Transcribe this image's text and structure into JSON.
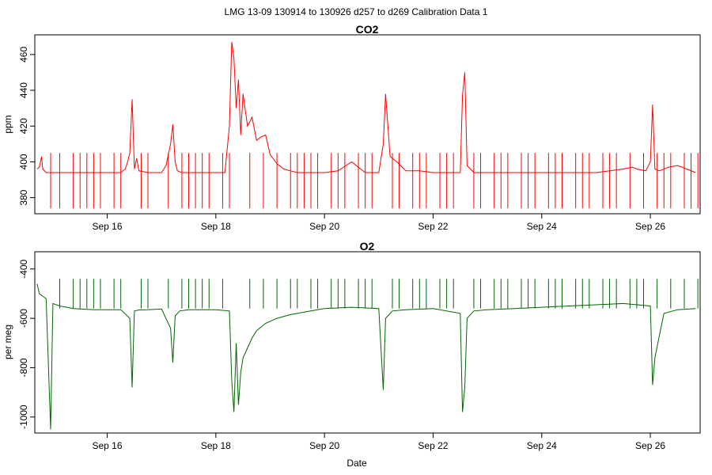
{
  "suptitle": "LMG   13-09    130914 to 130926    d257 to d269   Calibration Data 1",
  "chart_data": [
    {
      "type": "line",
      "title": "CO2",
      "xlabel": "",
      "ylabel": "ppm",
      "color": "#ff0000",
      "xlim": [
        "2013-09-14T16:00",
        "2013-09-26T22:00"
      ],
      "ylim": [
        371,
        471
      ],
      "x_ticks": [
        "2013-09-16",
        "2013-09-18",
        "2013-09-20",
        "2013-09-22",
        "2013-09-24",
        "2013-09-26"
      ],
      "x_tick_labels": [
        "Sep 16",
        "Sep 18",
        "Sep 20",
        "Sep 22",
        "Sep 24",
        "Sep 26"
      ],
      "y_ticks": [
        380,
        400,
        420,
        440,
        460
      ],
      "y_tick_labels": [
        "380",
        "400",
        "420",
        "440",
        "460"
      ],
      "series": [
        {
          "x": [
            "2013-09-14T17:00",
            "2013-09-14T18:00",
            "2013-09-14T19:00",
            "2013-09-14T19:30",
            "2013-09-14T21:00",
            "2013-09-15T00:00",
            "2013-09-15T06:00",
            "2013-09-15T12:00",
            "2013-09-15T18:00",
            "2013-09-16T00:00",
            "2013-09-16T06:00",
            "2013-09-16T08:00",
            "2013-09-16T09:00",
            "2013-09-16T10:00",
            "2013-09-16T11:00",
            "2013-09-16T12:00",
            "2013-09-16T13:00",
            "2013-09-16T14:00",
            "2013-09-16T18:00",
            "2013-09-17T00:00",
            "2013-09-17T02:00",
            "2013-09-17T04:00",
            "2013-09-17T05:00",
            "2013-09-17T06:00",
            "2013-09-17T07:00",
            "2013-09-17T09:00",
            "2013-09-17T12:00",
            "2013-09-17T18:00",
            "2013-09-18T00:00",
            "2013-09-18T04:00",
            "2013-09-18T06:00",
            "2013-09-18T07:00",
            "2013-09-18T08:00",
            "2013-09-18T09:00",
            "2013-09-18T10:00",
            "2013-09-18T11:00",
            "2013-09-18T12:00",
            "2013-09-18T14:00",
            "2013-09-18T16:00",
            "2013-09-18T18:00",
            "2013-09-18T20:00",
            "2013-09-18T22:00",
            "2013-09-19T00:00",
            "2013-09-19T03:00",
            "2013-09-19T06:00",
            "2013-09-19T09:00",
            "2013-09-19T12:00",
            "2013-09-19T15:00",
            "2013-09-19T18:00",
            "2013-09-20T00:00",
            "2013-09-20T06:00",
            "2013-09-20T12:00",
            "2013-09-20T18:00",
            "2013-09-21T00:00",
            "2013-09-21T02:00",
            "2013-09-21T03:00",
            "2013-09-21T05:00",
            "2013-09-21T08:00",
            "2013-09-21T12:00",
            "2013-09-21T18:00",
            "2013-09-22T00:00",
            "2013-09-22T06:00",
            "2013-09-22T12:00",
            "2013-09-22T13:00",
            "2013-09-22T14:00",
            "2013-09-22T15:00",
            "2013-09-22T18:00",
            "2013-09-23T00:00",
            "2013-09-23T06:00",
            "2013-09-23T12:00",
            "2013-09-23T18:00",
            "2013-09-24T00:00",
            "2013-09-24T06:00",
            "2013-09-24T12:00",
            "2013-09-24T18:00",
            "2013-09-25T00:00",
            "2013-09-25T06:00",
            "2013-09-25T12:00",
            "2013-09-25T16:00",
            "2013-09-25T18:00",
            "2013-09-25T22:00",
            "2013-09-26T00:00",
            "2013-09-26T01:00",
            "2013-09-26T02:00",
            "2013-09-26T04:00",
            "2013-09-26T08:00",
            "2013-09-26T12:00",
            "2013-09-26T16:00",
            "2013-09-26T20:00"
          ],
          "y": [
            396,
            397,
            403,
            396,
            394,
            394,
            394,
            394,
            394,
            394,
            394,
            396,
            400,
            405,
            435,
            396,
            402,
            395,
            394,
            394,
            398,
            410,
            421,
            400,
            395,
            394,
            394,
            394,
            394,
            394,
            420,
            467,
            458,
            430,
            446,
            415,
            438,
            420,
            425,
            412,
            414,
            415,
            404,
            399,
            396,
            395,
            394,
            394,
            394,
            394,
            395,
            400,
            394,
            394,
            410,
            438,
            403,
            400,
            395,
            395,
            394,
            394,
            394,
            437,
            450,
            398,
            394,
            394,
            394,
            394,
            394,
            394,
            394,
            394,
            394,
            394,
            395,
            396,
            397,
            396,
            395,
            400,
            432,
            396,
            395,
            397,
            398,
            396,
            394
          ]
        }
      ],
      "calibration_spikes": {
        "x": [
          "2013-09-14T23:00",
          "2013-09-15T03:00",
          "2013-09-15T09:00",
          "2013-09-15T12:00",
          "2013-09-15T15:00",
          "2013-09-15T18:00",
          "2013-09-15T21:00",
          "2013-09-16T03:00",
          "2013-09-16T06:00",
          "2013-09-16T15:00",
          "2013-09-16T18:00",
          "2013-09-17T03:00",
          "2013-09-17T09:00",
          "2013-09-17T12:00",
          "2013-09-17T15:00",
          "2013-09-17T18:00",
          "2013-09-17T21:00",
          "2013-09-18T03:00",
          "2013-09-18T06:00",
          "2013-09-18T15:00",
          "2013-09-18T21:00",
          "2013-09-19T03:00",
          "2013-09-19T09:00",
          "2013-09-19T12:00",
          "2013-09-19T15:00",
          "2013-09-19T18:00",
          "2013-09-19T21:00",
          "2013-09-20T03:00",
          "2013-09-20T06:00",
          "2013-09-20T09:00",
          "2013-09-20T15:00",
          "2013-09-20T18:00",
          "2013-09-20T21:00",
          "2013-09-21T06:00",
          "2013-09-21T09:00",
          "2013-09-21T15:00",
          "2013-09-21T18:00",
          "2013-09-21T21:00",
          "2013-09-22T03:00",
          "2013-09-22T06:00",
          "2013-09-22T09:00",
          "2013-09-22T18:00",
          "2013-09-22T21:00",
          "2013-09-23T03:00",
          "2013-09-23T06:00",
          "2013-09-23T09:00",
          "2013-09-23T15:00",
          "2013-09-23T18:00",
          "2013-09-23T21:00",
          "2013-09-24T03:00",
          "2013-09-24T06:00",
          "2013-09-24T09:00",
          "2013-09-24T15:00",
          "2013-09-24T18:00",
          "2013-09-24T21:00",
          "2013-09-25T03:00",
          "2013-09-25T06:00",
          "2013-09-25T09:00",
          "2013-09-25T15:00",
          "2013-09-25T21:00",
          "2013-09-26T03:00",
          "2013-09-26T06:00",
          "2013-09-26T09:00",
          "2013-09-26T15:00",
          "2013-09-26T18:00",
          "2013-09-26T21:00"
        ],
        "high": 405,
        "low": 374
      }
    },
    {
      "type": "line",
      "title": "O2",
      "xlabel": "Date",
      "ylabel": "per meg",
      "color": "#006400",
      "xlim": [
        "2013-09-14T16:00",
        "2013-09-26T22:00"
      ],
      "ylim": [
        -1065,
        -330
      ],
      "x_ticks": [
        "2013-09-16",
        "2013-09-18",
        "2013-09-20",
        "2013-09-22",
        "2013-09-24",
        "2013-09-26"
      ],
      "x_tick_labels": [
        "Sep 16",
        "Sep 18",
        "Sep 20",
        "Sep 22",
        "Sep 24",
        "Sep 26"
      ],
      "y_ticks": [
        -1000,
        -800,
        -600,
        -400
      ],
      "y_tick_labels": [
        "-1000",
        "-800",
        "-600",
        "-400"
      ],
      "series": [
        {
          "x": [
            "2013-09-14T17:00",
            "2013-09-14T18:00",
            "2013-09-14T21:00",
            "2013-09-14T23:00",
            "2013-09-15T00:00",
            "2013-09-15T03:00",
            "2013-09-15T06:00",
            "2013-09-15T09:00",
            "2013-09-15T12:00",
            "2013-09-15T18:00",
            "2013-09-16T00:00",
            "2013-09-16T06:00",
            "2013-09-16T10:00",
            "2013-09-16T11:00",
            "2013-09-16T12:00",
            "2013-09-16T14:00",
            "2013-09-16T18:00",
            "2013-09-17T00:00",
            "2013-09-17T04:00",
            "2013-09-17T05:00",
            "2013-09-17T06:00",
            "2013-09-17T08:00",
            "2013-09-17T12:00",
            "2013-09-17T18:00",
            "2013-09-18T00:00",
            "2013-09-18T06:00",
            "2013-09-18T07:00",
            "2013-09-18T08:00",
            "2013-09-18T09:00",
            "2013-09-18T10:00",
            "2013-09-18T11:00",
            "2013-09-18T12:00",
            "2013-09-18T14:00",
            "2013-09-18T16:00",
            "2013-09-18T18:00",
            "2013-09-18T22:00",
            "2013-09-19T03:00",
            "2013-09-19T09:00",
            "2013-09-19T15:00",
            "2013-09-20T00:00",
            "2013-09-20T12:00",
            "2013-09-21T00:00",
            "2013-09-21T02:00",
            "2013-09-21T03:00",
            "2013-09-21T06:00",
            "2013-09-21T12:00",
            "2013-09-22T00:00",
            "2013-09-22T12:00",
            "2013-09-22T13:00",
            "2013-09-22T14:00",
            "2013-09-22T15:00",
            "2013-09-22T18:00",
            "2013-09-23T00:00",
            "2013-09-23T12:00",
            "2013-09-24T00:00",
            "2013-09-24T12:00",
            "2013-09-25T00:00",
            "2013-09-25T12:00",
            "2013-09-26T00:00",
            "2013-09-26T01:00",
            "2013-09-26T02:00",
            "2013-09-26T06:00",
            "2013-09-26T12:00",
            "2013-09-26T20:00"
          ],
          "y": [
            -460,
            -500,
            -520,
            -1050,
            -540,
            -550,
            -555,
            -560,
            -562,
            -565,
            -565,
            -565,
            -600,
            -880,
            -570,
            -566,
            -565,
            -562,
            -640,
            -780,
            -590,
            -570,
            -565,
            -565,
            -565,
            -570,
            -850,
            -980,
            -700,
            -950,
            -820,
            -760,
            -720,
            -680,
            -650,
            -620,
            -600,
            -585,
            -575,
            -560,
            -555,
            -560,
            -890,
            -600,
            -570,
            -565,
            -560,
            -580,
            -980,
            -880,
            -600,
            -570,
            -565,
            -560,
            -555,
            -550,
            -545,
            -540,
            -550,
            -870,
            -760,
            -580,
            -565,
            -560
          ]
        }
      ],
      "calibration_spikes": {
        "x": [
          "2013-09-15T03:00",
          "2013-09-15T09:00",
          "2013-09-15T12:00",
          "2013-09-15T15:00",
          "2013-09-15T18:00",
          "2013-09-15T21:00",
          "2013-09-16T03:00",
          "2013-09-16T06:00",
          "2013-09-16T15:00",
          "2013-09-16T18:00",
          "2013-09-17T03:00",
          "2013-09-17T09:00",
          "2013-09-17T12:00",
          "2013-09-17T15:00",
          "2013-09-17T18:00",
          "2013-09-17T21:00",
          "2013-09-18T03:00",
          "2013-09-18T15:00",
          "2013-09-18T21:00",
          "2013-09-19T03:00",
          "2013-09-19T09:00",
          "2013-09-19T12:00",
          "2013-09-19T18:00",
          "2013-09-19T21:00",
          "2013-09-20T03:00",
          "2013-09-20T06:00",
          "2013-09-20T09:00",
          "2013-09-20T15:00",
          "2013-09-20T18:00",
          "2013-09-20T21:00",
          "2013-09-21T06:00",
          "2013-09-21T09:00",
          "2013-09-21T15:00",
          "2013-09-21T18:00",
          "2013-09-21T21:00",
          "2013-09-22T03:00",
          "2013-09-22T06:00",
          "2013-09-22T09:00",
          "2013-09-22T18:00",
          "2013-09-22T21:00",
          "2013-09-23T03:00",
          "2013-09-23T06:00",
          "2013-09-23T09:00",
          "2013-09-23T15:00",
          "2013-09-23T18:00",
          "2013-09-23T21:00",
          "2013-09-24T03:00",
          "2013-09-24T06:00",
          "2013-09-24T09:00",
          "2013-09-24T15:00",
          "2013-09-24T18:00",
          "2013-09-24T21:00",
          "2013-09-25T03:00",
          "2013-09-25T06:00",
          "2013-09-25T09:00",
          "2013-09-25T15:00",
          "2013-09-25T18:00",
          "2013-09-25T21:00",
          "2013-09-26T03:00",
          "2013-09-26T09:00",
          "2013-09-26T15:00",
          "2013-09-26T21:00"
        ],
        "high": -440
      }
    }
  ]
}
